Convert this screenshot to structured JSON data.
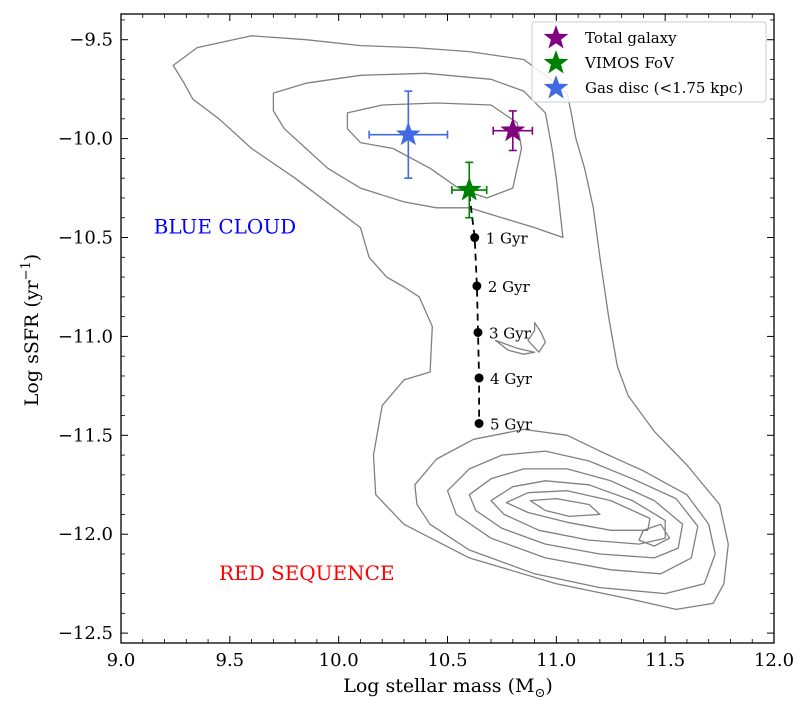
{
  "chart_data": {
    "type": "scatter",
    "xlabel": "Log stellar mass (M",
    "xlabel_sub": "⊙",
    "xlabel_close": ")",
    "ylabel": "Log sSFR (yr",
    "ylabel_sup": "−1",
    "ylabel_close": ")",
    "xlim": [
      9.0,
      12.0
    ],
    "ylim": [
      -12.55,
      -9.37
    ],
    "xticks": [
      {
        "value": 9.0,
        "label": "9.0"
      },
      {
        "value": 9.5,
        "label": "9.5"
      },
      {
        "value": 10.0,
        "label": "10.0"
      },
      {
        "value": 10.5,
        "label": "10.5"
      },
      {
        "value": 11.0,
        "label": "11.0"
      },
      {
        "value": 11.5,
        "label": "11.5"
      },
      {
        "value": 12.0,
        "label": "12.0"
      }
    ],
    "yticks": [
      {
        "value": -9.5,
        "label": "−9.5"
      },
      {
        "value": -10.0,
        "label": "−10.0"
      },
      {
        "value": -10.5,
        "label": "−10.5"
      },
      {
        "value": -11.0,
        "label": "−11.0"
      },
      {
        "value": -11.5,
        "label": "−11.5"
      },
      {
        "value": -12.0,
        "label": "−12.0"
      },
      {
        "value": -12.5,
        "label": "−12.5"
      }
    ],
    "x_minor_step": 0.1,
    "y_minor_step": 0.1,
    "colors": {
      "contour": "#808080",
      "total_galaxy": "#800080",
      "vimos_fov": "#008000",
      "gas_disc": "#4169e1",
      "blue_cloud_label": "#0000ff",
      "red_sequence_label": "#ff0000",
      "track": "#000000"
    },
    "points": [
      {
        "name": "Total galaxy",
        "x": 10.8,
        "y": -9.96,
        "xerr": 0.09,
        "yerr": 0.1,
        "color": "#800080"
      },
      {
        "name": "VIMOS FoV",
        "x": 10.6,
        "y": -10.26,
        "xerr": 0.08,
        "yerr": 0.14,
        "color": "#008000"
      },
      {
        "name": "Gas disc (<1.75 kpc)",
        "x": 10.32,
        "y": -9.98,
        "xerr": 0.18,
        "yerr": 0.22,
        "color": "#4169e1"
      }
    ],
    "legend": {
      "position": "top-right",
      "entries": [
        "Total galaxy",
        "VIMOS FoV",
        "Gas disc (<1.75 kpc)"
      ]
    },
    "track": {
      "start": {
        "x": 10.6,
        "y": -10.28
      },
      "points": [
        {
          "x": 10.625,
          "y": -10.5,
          "label": "1 Gyr"
        },
        {
          "x": 10.635,
          "y": -10.745,
          "label": "2 Gyr"
        },
        {
          "x": 10.64,
          "y": -10.98,
          "label": "3 Gyr"
        },
        {
          "x": 10.645,
          "y": -11.21,
          "label": "4 Gyr"
        },
        {
          "x": 10.645,
          "y": -11.44,
          "label": "5 Gyr"
        }
      ]
    },
    "annotations": [
      {
        "text": "BLUE CLOUD",
        "x": 9.15,
        "y": -10.45,
        "color": "#0000ff"
      },
      {
        "text": "RED SEQUENCE",
        "x": 9.45,
        "y": -12.2,
        "color": "#ff0000"
      }
    ],
    "contours": [
      [
        [
          9.24,
          -9.63
        ],
        [
          9.35,
          -9.54
        ],
        [
          9.6,
          -9.48
        ],
        [
          9.85,
          -9.5
        ],
        [
          10.1,
          -9.53
        ],
        [
          10.35,
          -9.54
        ],
        [
          10.6,
          -9.56
        ],
        [
          10.85,
          -9.6
        ],
        [
          10.95,
          -9.68
        ],
        [
          11.05,
          -9.77
        ],
        [
          11.07,
          -9.88
        ],
        [
          11.09,
          -10.0
        ],
        [
          11.13,
          -10.15
        ],
        [
          11.17,
          -10.35
        ],
        [
          11.2,
          -10.6
        ],
        [
          11.24,
          -10.9
        ],
        [
          11.28,
          -11.15
        ],
        [
          11.33,
          -11.3
        ],
        [
          11.45,
          -11.48
        ],
        [
          11.6,
          -11.65
        ],
        [
          11.75,
          -11.85
        ],
        [
          11.79,
          -12.05
        ],
        [
          11.77,
          -12.25
        ],
        [
          11.72,
          -12.35
        ],
        [
          11.55,
          -12.38
        ],
        [
          11.35,
          -12.33
        ],
        [
          11.0,
          -12.25
        ],
        [
          10.6,
          -12.12
        ],
        [
          10.3,
          -11.95
        ],
        [
          10.17,
          -11.8
        ],
        [
          10.16,
          -11.6
        ],
        [
          10.2,
          -11.35
        ],
        [
          10.3,
          -11.22
        ],
        [
          10.42,
          -11.18
        ],
        [
          10.43,
          -10.95
        ],
        [
          10.37,
          -10.8
        ],
        [
          10.3,
          -10.75
        ],
        [
          10.22,
          -10.7
        ],
        [
          10.14,
          -10.6
        ],
        [
          10.1,
          -10.45
        ],
        [
          9.98,
          -10.35
        ],
        [
          9.8,
          -10.2
        ],
        [
          9.6,
          -10.05
        ],
        [
          9.45,
          -9.9
        ],
        [
          9.33,
          -9.8
        ],
        [
          9.29,
          -9.72
        ],
        [
          9.24,
          -9.63
        ]
      ],
      [
        [
          9.7,
          -9.77
        ],
        [
          9.85,
          -9.72
        ],
        [
          10.1,
          -9.68
        ],
        [
          10.4,
          -9.67
        ],
        [
          10.7,
          -9.7
        ],
        [
          10.85,
          -9.76
        ],
        [
          10.95,
          -9.87
        ],
        [
          10.98,
          -10.05
        ],
        [
          11.0,
          -10.2
        ],
        [
          11.02,
          -10.4
        ],
        [
          11.03,
          -10.5
        ],
        [
          10.9,
          -10.45
        ],
        [
          10.75,
          -10.4
        ],
        [
          10.6,
          -10.35
        ],
        [
          10.45,
          -10.35
        ],
        [
          10.3,
          -10.32
        ],
        [
          10.1,
          -10.25
        ],
        [
          9.95,
          -10.15
        ],
        [
          9.85,
          -10.05
        ],
        [
          9.75,
          -9.95
        ],
        [
          9.7,
          -9.86
        ],
        [
          9.7,
          -9.77
        ]
      ],
      [
        [
          10.04,
          -9.87
        ],
        [
          10.2,
          -9.83
        ],
        [
          10.45,
          -9.82
        ],
        [
          10.7,
          -9.83
        ],
        [
          10.82,
          -9.92
        ],
        [
          10.84,
          -10.05
        ],
        [
          10.8,
          -10.25
        ],
        [
          10.68,
          -10.3
        ],
        [
          10.55,
          -10.25
        ],
        [
          10.42,
          -10.15
        ],
        [
          10.25,
          -10.05
        ],
        [
          10.1,
          -10.02
        ],
        [
          10.04,
          -9.95
        ],
        [
          10.04,
          -9.87
        ]
      ],
      [
        [
          10.9,
          -10.93
        ],
        [
          10.93,
          -10.98
        ],
        [
          10.95,
          -11.03
        ],
        [
          10.92,
          -11.08
        ],
        [
          10.87,
          -11.02
        ],
        [
          10.9,
          -10.97
        ],
        [
          10.9,
          -10.93
        ]
      ],
      [
        [
          10.72,
          -11.02
        ],
        [
          10.82,
          -11.06
        ],
        [
          10.9,
          -11.08
        ],
        [
          10.85,
          -11.09
        ],
        [
          10.78,
          -11.07
        ],
        [
          10.72,
          -11.02
        ]
      ],
      [
        [
          10.35,
          -11.75
        ],
        [
          10.45,
          -11.62
        ],
        [
          10.62,
          -11.52
        ],
        [
          10.85,
          -11.47
        ],
        [
          11.05,
          -11.5
        ],
        [
          11.2,
          -11.58
        ],
        [
          11.4,
          -11.68
        ],
        [
          11.6,
          -11.8
        ],
        [
          11.7,
          -11.95
        ],
        [
          11.73,
          -12.1
        ],
        [
          11.68,
          -12.25
        ],
        [
          11.5,
          -12.3
        ],
        [
          11.2,
          -12.27
        ],
        [
          10.9,
          -12.2
        ],
        [
          10.6,
          -12.08
        ],
        [
          10.42,
          -11.95
        ],
        [
          10.36,
          -11.85
        ],
        [
          10.35,
          -11.75
        ]
      ],
      [
        [
          10.5,
          -11.78
        ],
        [
          10.6,
          -11.67
        ],
        [
          10.75,
          -11.6
        ],
        [
          10.95,
          -11.58
        ],
        [
          11.15,
          -11.63
        ],
        [
          11.35,
          -11.72
        ],
        [
          11.55,
          -11.82
        ],
        [
          11.65,
          -11.96
        ],
        [
          11.62,
          -12.12
        ],
        [
          11.48,
          -12.2
        ],
        [
          11.25,
          -12.18
        ],
        [
          10.95,
          -12.12
        ],
        [
          10.7,
          -12.02
        ],
        [
          10.54,
          -11.9
        ],
        [
          10.5,
          -11.78
        ]
      ],
      [
        [
          10.6,
          -11.8
        ],
        [
          10.7,
          -11.72
        ],
        [
          10.85,
          -11.67
        ],
        [
          11.05,
          -11.67
        ],
        [
          11.25,
          -11.73
        ],
        [
          11.45,
          -11.83
        ],
        [
          11.58,
          -11.95
        ],
        [
          11.56,
          -12.07
        ],
        [
          11.45,
          -12.12
        ],
        [
          11.2,
          -12.1
        ],
        [
          10.95,
          -12.05
        ],
        [
          10.75,
          -11.97
        ],
        [
          10.63,
          -11.88
        ],
        [
          10.6,
          -11.8
        ]
      ],
      [
        [
          10.7,
          -11.83
        ],
        [
          10.8,
          -11.76
        ],
        [
          10.95,
          -11.73
        ],
        [
          11.15,
          -11.75
        ],
        [
          11.35,
          -11.83
        ],
        [
          11.5,
          -11.93
        ],
        [
          11.5,
          -12.02
        ],
        [
          11.38,
          -12.05
        ],
        [
          11.15,
          -12.03
        ],
        [
          10.92,
          -11.98
        ],
        [
          10.76,
          -11.9
        ],
        [
          10.7,
          -11.83
        ]
      ],
      [
        [
          10.77,
          -11.84
        ],
        [
          10.87,
          -11.79
        ],
        [
          11.05,
          -11.78
        ],
        [
          11.25,
          -11.83
        ],
        [
          11.43,
          -11.92
        ],
        [
          11.42,
          -11.98
        ],
        [
          11.25,
          -11.98
        ],
        [
          11.05,
          -11.94
        ],
        [
          10.87,
          -11.89
        ],
        [
          10.77,
          -11.84
        ]
      ],
      [
        [
          10.88,
          -11.83
        ],
        [
          11.0,
          -11.82
        ],
        [
          11.15,
          -11.85
        ],
        [
          11.2,
          -11.9
        ],
        [
          11.06,
          -11.91
        ],
        [
          10.95,
          -11.88
        ],
        [
          10.88,
          -11.83
        ]
      ],
      [
        [
          11.4,
          -11.98
        ],
        [
          11.48,
          -11.95
        ],
        [
          11.52,
          -12.02
        ],
        [
          11.45,
          -12.06
        ],
        [
          11.38,
          -12.03
        ],
        [
          11.4,
          -11.98
        ]
      ]
    ]
  }
}
